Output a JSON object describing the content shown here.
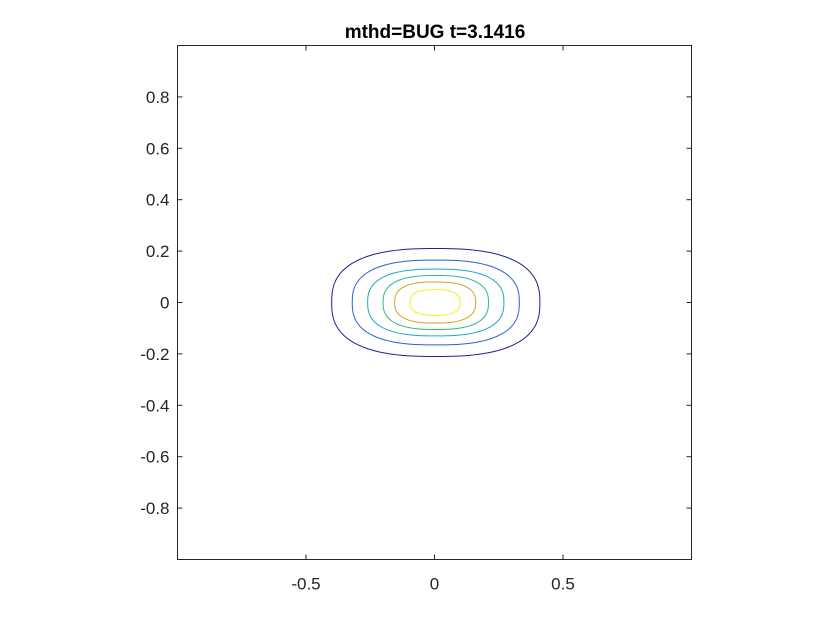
{
  "chart_data": {
    "type": "contour",
    "title": "mthd=BUG t=3.1416",
    "xlabel": "",
    "ylabel": "",
    "xlim": [
      -1,
      1
    ],
    "ylim": [
      -1,
      1
    ],
    "grid": false,
    "x_ticks": [
      -0.5,
      0,
      0.5
    ],
    "x_tick_labels": [
      "-0.5",
      "0",
      "0.5"
    ],
    "y_ticks": [
      -0.8,
      -0.6,
      -0.4,
      -0.2,
      0,
      0.2,
      0.4,
      0.6,
      0.8
    ],
    "y_tick_labels": [
      "-0.8",
      "-0.6",
      "-0.4",
      "-0.2",
      "0",
      "0.2",
      "0.4",
      "0.6",
      "0.8"
    ],
    "contours": [
      {
        "level": 1,
        "center": [
          0.0,
          0.0
        ],
        "x_extent": [
          -0.4,
          0.41
        ],
        "y_extent": [
          -0.21,
          0.21
        ],
        "color": "#1f1f9a"
      },
      {
        "level": 2,
        "center": [
          0.0,
          0.0
        ],
        "x_extent": [
          -0.32,
          0.33
        ],
        "y_extent": [
          -0.165,
          0.165
        ],
        "color": "#2b5fd6"
      },
      {
        "level": 3,
        "center": [
          0.0,
          0.0
        ],
        "x_extent": [
          -0.26,
          0.27
        ],
        "y_extent": [
          -0.13,
          0.13
        ],
        "color": "#1fa6c8"
      },
      {
        "level": 4,
        "center": [
          0.0,
          0.0
        ],
        "x_extent": [
          -0.2,
          0.21
        ],
        "y_extent": [
          -0.105,
          0.105
        ],
        "color": "#2fb878"
      },
      {
        "level": 5,
        "center": [
          0.0,
          0.0
        ],
        "x_extent": [
          -0.155,
          0.16
        ],
        "y_extent": [
          -0.08,
          0.08
        ],
        "color": "#d9a020"
      },
      {
        "level": 6,
        "center": [
          0.0,
          0.0
        ],
        "x_extent": [
          -0.095,
          0.1
        ],
        "y_extent": [
          -0.05,
          0.05
        ],
        "color": "#f2f21a"
      }
    ]
  }
}
